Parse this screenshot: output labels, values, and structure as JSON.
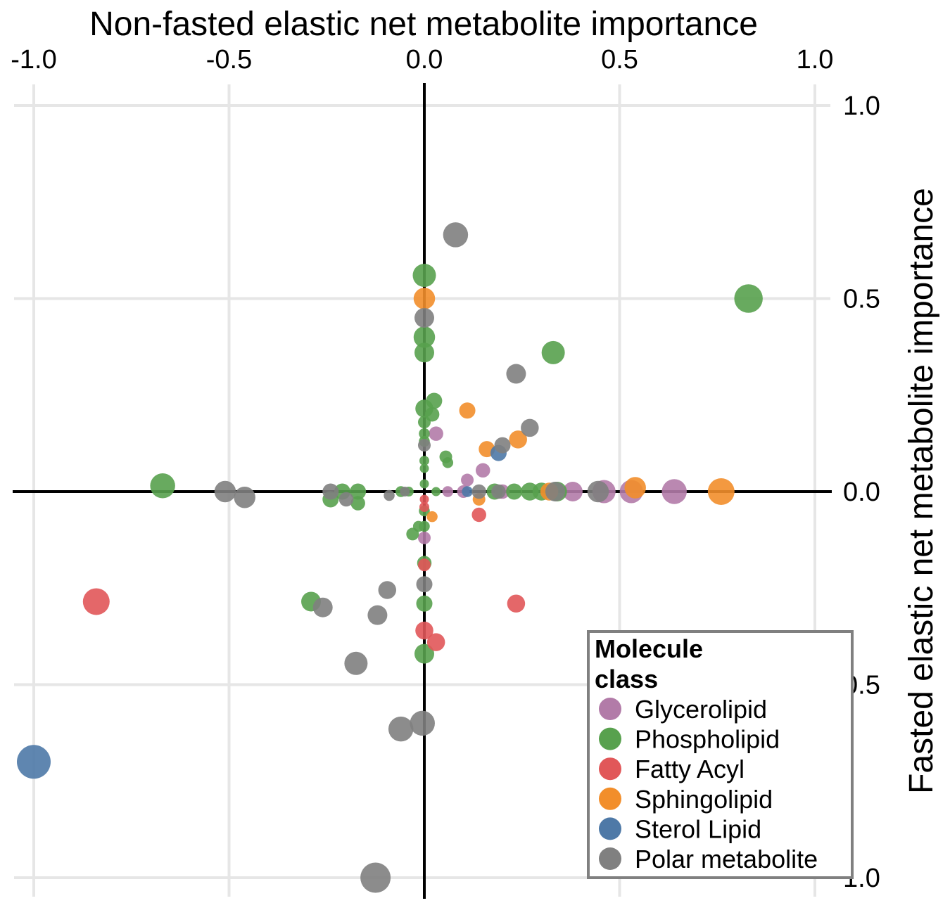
{
  "chart_data": {
    "type": "scatter",
    "title": "Non-fasted elastic net metabolite importance",
    "xlabel": "Non-fasted elastic net metabolite importance",
    "ylabel": "Fasted elastic net metabolite importance",
    "xlim": [
      -1.0,
      1.0
    ],
    "ylim": [
      -1.0,
      1.0
    ],
    "x_ticks": [
      "-1.0",
      "-0.5",
      "0.0",
      "0.5",
      "1.0"
    ],
    "y_ticks": [
      "1.0",
      "0.5",
      "0.0",
      "0.5",
      "1.0"
    ],
    "grid": true,
    "legend": {
      "title_line1": "Molecule",
      "title_line2": "class",
      "placement": "bottom-right"
    },
    "series": [
      {
        "name": "Glycerolipid",
        "color": "#b27ba8",
        "points": [
          {
            "x": 0.03,
            "y": 0.15,
            "size": 0.25
          },
          {
            "x": 0.11,
            "y": 0.03,
            "size": 0.2
          },
          {
            "x": 0.15,
            "y": 0.055,
            "size": 0.25
          },
          {
            "x": 0.1,
            "y": 0.0,
            "size": 0.2
          },
          {
            "x": 0.2,
            "y": 0.0,
            "size": 0.25
          },
          {
            "x": 0.38,
            "y": 0.0,
            "size": 0.4
          },
          {
            "x": 0.46,
            "y": 0.0,
            "size": 0.5
          },
          {
            "x": 0.53,
            "y": 0.0,
            "size": 0.5
          },
          {
            "x": 0.64,
            "y": 0.0,
            "size": 0.55
          },
          {
            "x": 0.06,
            "y": 0.0,
            "size": 0.15
          },
          {
            "x": 0.0,
            "y": -0.12,
            "size": 0.2
          }
        ]
      },
      {
        "name": "Phospholipid",
        "color": "#58a14e",
        "points": [
          {
            "x": 0.83,
            "y": 0.5,
            "size": 0.65
          },
          {
            "x": -0.67,
            "y": 0.015,
            "size": 0.55
          },
          {
            "x": 0.33,
            "y": 0.36,
            "size": 0.5
          },
          {
            "x": 0.0,
            "y": 0.56,
            "size": 0.5
          },
          {
            "x": 0.0,
            "y": 0.4,
            "size": 0.45
          },
          {
            "x": 0.0,
            "y": 0.36,
            "size": 0.4
          },
          {
            "x": 0.025,
            "y": 0.235,
            "size": 0.3
          },
          {
            "x": 0.0,
            "y": 0.215,
            "size": 0.35
          },
          {
            "x": 0.02,
            "y": 0.2,
            "size": 0.25
          },
          {
            "x": 0.0,
            "y": 0.18,
            "size": 0.2
          },
          {
            "x": 0.0,
            "y": 0.15,
            "size": 0.15
          },
          {
            "x": 0.0,
            "y": 0.13,
            "size": 0.15
          },
          {
            "x": 0.0,
            "y": 0.08,
            "size": 0.12
          },
          {
            "x": 0.0,
            "y": 0.06,
            "size": 0.1
          },
          {
            "x": 0.055,
            "y": 0.09,
            "size": 0.2
          },
          {
            "x": 0.06,
            "y": 0.075,
            "size": 0.15
          },
          {
            "x": 0.0,
            "y": 0.02,
            "size": 0.1
          },
          {
            "x": -0.24,
            "y": -0.02,
            "size": 0.3
          },
          {
            "x": -0.21,
            "y": 0.0,
            "size": 0.3
          },
          {
            "x": -0.17,
            "y": 0.0,
            "size": 0.3
          },
          {
            "x": -0.17,
            "y": -0.03,
            "size": 0.25
          },
          {
            "x": -0.06,
            "y": 0.0,
            "size": 0.15
          },
          {
            "x": -0.04,
            "y": 0.0,
            "size": 0.12
          },
          {
            "x": 0.03,
            "y": 0.0,
            "size": 0.1
          },
          {
            "x": 0.18,
            "y": 0.0,
            "size": 0.3
          },
          {
            "x": 0.23,
            "y": 0.0,
            "size": 0.3
          },
          {
            "x": 0.27,
            "y": 0.0,
            "size": 0.35
          },
          {
            "x": 0.3,
            "y": 0.0,
            "size": 0.35
          },
          {
            "x": 0.34,
            "y": 0.0,
            "size": 0.4
          },
          {
            "x": 0.0,
            "y": -0.05,
            "size": 0.15
          },
          {
            "x": 0.0,
            "y": -0.09,
            "size": 0.15
          },
          {
            "x": -0.03,
            "y": -0.11,
            "size": 0.2
          },
          {
            "x": -0.015,
            "y": -0.09,
            "size": 0.15
          },
          {
            "x": 0.0,
            "y": -0.185,
            "size": 0.25
          },
          {
            "x": 0.0,
            "y": -0.29,
            "size": 0.3
          },
          {
            "x": -0.29,
            "y": -0.285,
            "size": 0.4
          },
          {
            "x": 0.0,
            "y": -0.42,
            "size": 0.4
          }
        ]
      },
      {
        "name": "Fatty Acyl",
        "color": "#e15759",
        "points": [
          {
            "x": -0.84,
            "y": -0.285,
            "size": 0.6
          },
          {
            "x": 0.235,
            "y": -0.29,
            "size": 0.35
          },
          {
            "x": 0.0,
            "y": -0.36,
            "size": 0.35
          },
          {
            "x": 0.03,
            "y": -0.39,
            "size": 0.35
          },
          {
            "x": 0.0,
            "y": -0.19,
            "size": 0.2
          },
          {
            "x": 0.14,
            "y": -0.06,
            "size": 0.25
          },
          {
            "x": 0.0,
            "y": -0.04,
            "size": 0.12
          },
          {
            "x": 0.0,
            "y": -0.02,
            "size": 0.1
          }
        ]
      },
      {
        "name": "Sphingolipid",
        "color": "#f28e2b",
        "points": [
          {
            "x": 0.0,
            "y": 0.5,
            "size": 0.45
          },
          {
            "x": 0.11,
            "y": 0.21,
            "size": 0.3
          },
          {
            "x": 0.24,
            "y": 0.135,
            "size": 0.35
          },
          {
            "x": 0.16,
            "y": 0.11,
            "size": 0.3
          },
          {
            "x": 0.54,
            "y": 0.01,
            "size": 0.45
          },
          {
            "x": 0.76,
            "y": 0.0,
            "size": 0.6
          },
          {
            "x": 0.32,
            "y": 0.0,
            "size": 0.35
          },
          {
            "x": 0.14,
            "y": -0.02,
            "size": 0.2
          },
          {
            "x": 0.02,
            "y": -0.065,
            "size": 0.15
          }
        ]
      },
      {
        "name": "Sterol Lipid",
        "color": "#4e79a7",
        "points": [
          {
            "x": -1.0,
            "y": -0.7,
            "size": 0.8
          },
          {
            "x": 0.19,
            "y": 0.1,
            "size": 0.3
          },
          {
            "x": 0.11,
            "y": 0.0,
            "size": 0.15
          }
        ]
      },
      {
        "name": "Polar metabolite",
        "color": "#808080",
        "points": [
          {
            "x": 0.08,
            "y": 0.665,
            "size": 0.55
          },
          {
            "x": 0.0,
            "y": 0.45,
            "size": 0.4
          },
          {
            "x": 0.235,
            "y": 0.305,
            "size": 0.4
          },
          {
            "x": 0.27,
            "y": 0.165,
            "size": 0.35
          },
          {
            "x": 0.2,
            "y": 0.12,
            "size": 0.3
          },
          {
            "x": 0.0,
            "y": 0.12,
            "size": 0.2
          },
          {
            "x": -0.51,
            "y": 0.0,
            "size": 0.45
          },
          {
            "x": -0.46,
            "y": -0.015,
            "size": 0.45
          },
          {
            "x": -0.24,
            "y": 0.0,
            "size": 0.3
          },
          {
            "x": -0.2,
            "y": -0.02,
            "size": 0.25
          },
          {
            "x": -0.09,
            "y": -0.01,
            "size": 0.15
          },
          {
            "x": -0.05,
            "y": 0.0,
            "size": 0.12
          },
          {
            "x": 0.14,
            "y": 0.0,
            "size": 0.25
          },
          {
            "x": 0.19,
            "y": 0.0,
            "size": 0.25
          },
          {
            "x": 0.335,
            "y": 0.0,
            "size": 0.4
          },
          {
            "x": 0.445,
            "y": 0.0,
            "size": 0.45
          },
          {
            "x": 0.0,
            "y": -0.24,
            "size": 0.3
          },
          {
            "x": -0.095,
            "y": -0.255,
            "size": 0.35
          },
          {
            "x": -0.26,
            "y": -0.3,
            "size": 0.4
          },
          {
            "x": -0.12,
            "y": -0.32,
            "size": 0.4
          },
          {
            "x": -0.175,
            "y": -0.445,
            "size": 0.5
          },
          {
            "x": -0.06,
            "y": -0.615,
            "size": 0.55
          },
          {
            "x": -0.005,
            "y": -0.6,
            "size": 0.55
          },
          {
            "x": -0.125,
            "y": -1.0,
            "size": 0.7
          }
        ]
      }
    ]
  }
}
